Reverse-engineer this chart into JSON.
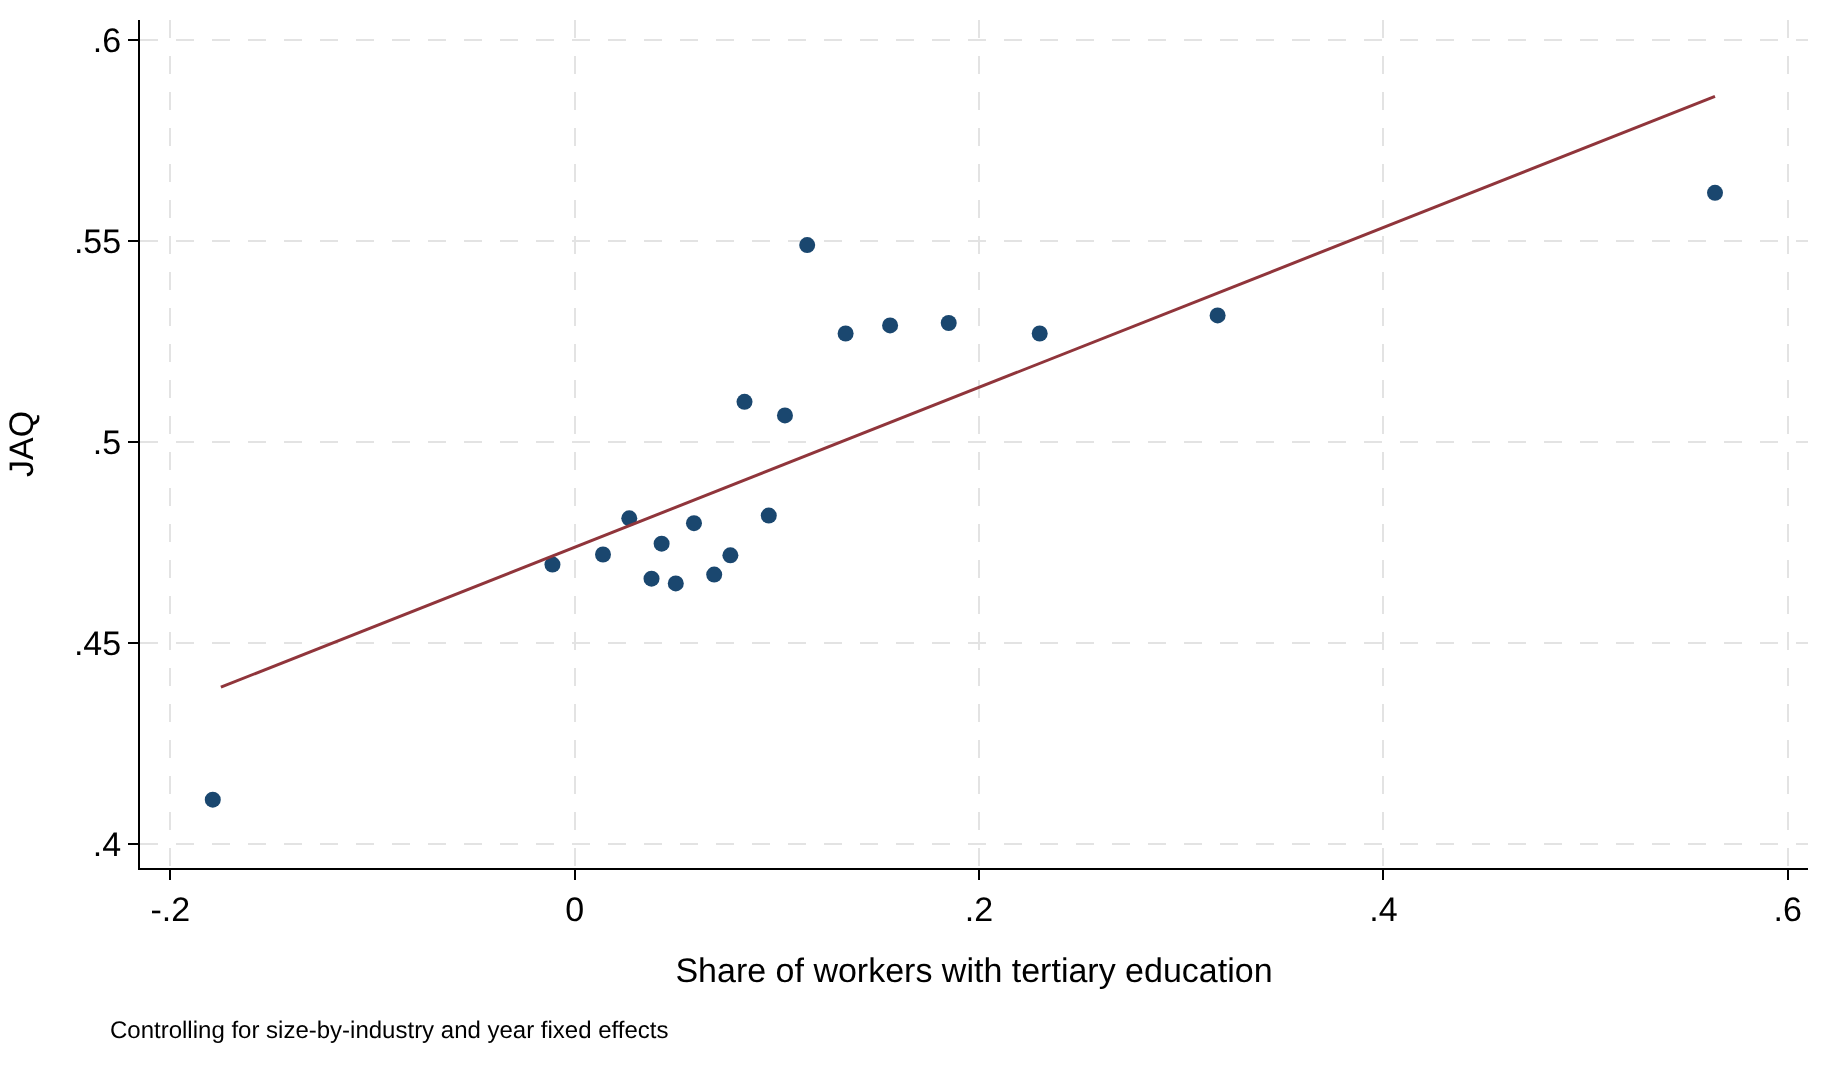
{
  "chart_data": {
    "type": "scatter",
    "xlabel": "Share of workers with tertiary education",
    "ylabel": "JAQ",
    "annotations": [
      "Controlling for size-by-industry and year fixed effects"
    ],
    "xlim": [
      -0.215,
      0.61
    ],
    "ylim": [
      0.394,
      0.605
    ],
    "xticks": [
      {
        "value": -0.2,
        "label": "-.2"
      },
      0,
      {
        "value": 0.2,
        "label": ".2"
      },
      {
        "value": 0.4,
        "label": ".4"
      },
      {
        "value": 0.6,
        "label": ".6"
      }
    ],
    "yticks": [
      {
        "value": 0.4,
        "label": ".4"
      },
      {
        "value": 0.45,
        "label": ".45"
      },
      {
        "value": 0.5,
        "label": ".5"
      },
      {
        "value": 0.55,
        "label": ".55"
      },
      {
        "value": 0.6,
        "label": ".6"
      }
    ],
    "grid": true,
    "marker": "circle",
    "series": [
      {
        "color": "#1a476f",
        "x": [
          -0.179,
          -0.011,
          0.014,
          0.027,
          0.038,
          0.043,
          0.05,
          0.059,
          0.069,
          0.077,
          0.096,
          0.084,
          0.104,
          0.115,
          0.134,
          0.156,
          0.185,
          0.23,
          0.318,
          0.564
        ],
        "values": [
          0.411,
          0.4695,
          0.472,
          0.481,
          0.466,
          0.4747,
          0.4648,
          0.4798,
          0.467,
          0.4718,
          0.4817,
          0.51,
          0.5066,
          0.549,
          0.527,
          0.529,
          0.5296,
          0.527,
          0.5315,
          0.562
        ]
      },
      {
        "type": "line",
        "color": "#90353b",
        "marker": "none",
        "line_style": "solid",
        "x": [
          -0.175,
          0.564
        ],
        "values": [
          0.439,
          0.586
        ]
      }
    ]
  }
}
